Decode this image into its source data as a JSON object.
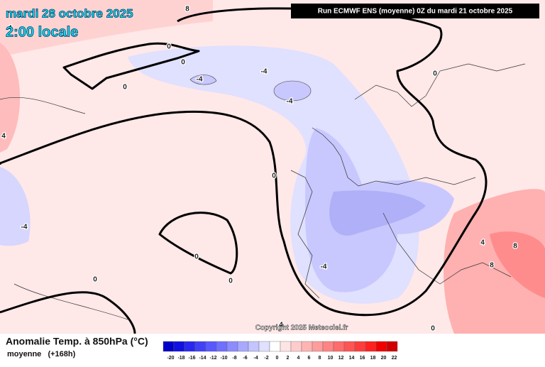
{
  "header": {
    "title": "mardi 28 octobre 2025",
    "time": "2:00 locale",
    "run": "Run ECMWF ENS (moyenne) 0Z du mardi 21 octobre 2025",
    "copyright": "Copyright 2025 Meteociel.fr"
  },
  "legend": {
    "title": "Anomalie Temp. à 850hPa (°C)",
    "subtitle": "moyenne   (+168h)",
    "ticks": [
      -20,
      -18,
      -16,
      -14,
      -12,
      -10,
      -8,
      -6,
      -4,
      -2,
      0,
      2,
      4,
      6,
      8,
      10,
      12,
      14,
      16,
      18,
      20,
      22
    ],
    "colors": [
      "#0000c8",
      "#1010e0",
      "#2828f0",
      "#4040f8",
      "#5858ff",
      "#7070ff",
      "#8c8cff",
      "#a8a8ff",
      "#c4c4ff",
      "#e0e0ff",
      "#ffffff",
      "#ffe4e4",
      "#ffcccc",
      "#ffb4b4",
      "#ff9c9c",
      "#ff8484",
      "#ff6c6c",
      "#ff5454",
      "#ff3c3c",
      "#ff2020",
      "#f00000",
      "#d00000"
    ]
  },
  "contour_labels": [
    8,
    4,
    0,
    0,
    0,
    -4,
    -4,
    -4,
    0,
    0,
    0,
    0,
    0,
    -4,
    -4,
    4,
    8,
    8,
    4,
    0,
    4
  ]
}
